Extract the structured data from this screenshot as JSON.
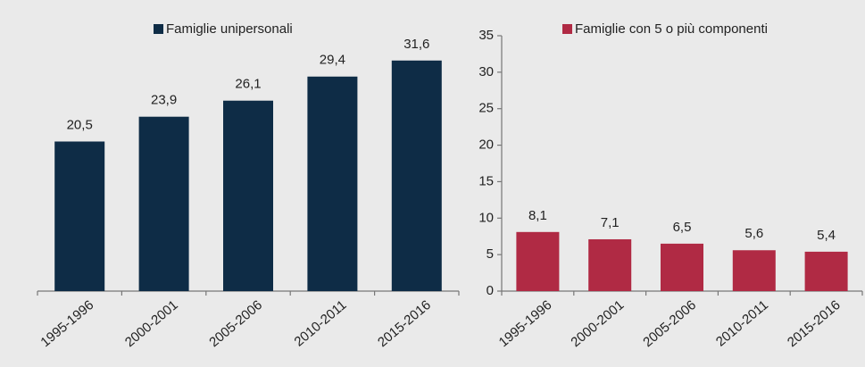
{
  "chart_data": [
    {
      "type": "bar",
      "categories": [
        "1995-1996",
        "2000-2001",
        "2005-2006",
        "2010-2011",
        "2015-2016"
      ],
      "series": [
        {
          "name": "Famiglie unipersonali",
          "color": "#0e2c46",
          "values": [
            20.5,
            23.9,
            26.1,
            29.4,
            31.6
          ],
          "value_labels": [
            "20,5",
            "23,9",
            "26,1",
            "29,4",
            "31,6"
          ]
        }
      ],
      "ylim": [
        0,
        35
      ]
    },
    {
      "type": "bar",
      "categories": [
        "1995-1996",
        "2000-2001",
        "2005-2006",
        "2010-2011",
        "2015-2016"
      ],
      "series": [
        {
          "name": "Famiglie con 5 o più componenti",
          "color": "#b02a44",
          "values": [
            8.1,
            7.1,
            6.5,
            5.6,
            5.4
          ],
          "value_labels": [
            "8,1",
            "7,1",
            "6,5",
            "5,6",
            "5,4"
          ]
        }
      ],
      "ylim": [
        0,
        35
      ],
      "yticks": [
        0,
        5,
        10,
        15,
        20,
        25,
        30,
        35
      ]
    }
  ]
}
